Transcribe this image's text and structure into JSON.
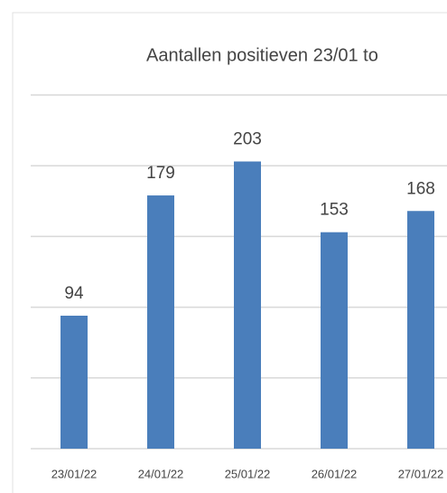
{
  "chart_data": {
    "type": "bar",
    "title": "Aantallen positieven 23/01 to",
    "categories": [
      "23/01/22",
      "24/01/22",
      "25/01/22",
      "26/01/22",
      "27/01/22"
    ],
    "values": [
      94,
      179,
      203,
      153,
      168
    ],
    "color": "#4a7ebb",
    "ylim": [
      0,
      250
    ],
    "yticks": [
      0,
      50,
      100,
      150,
      200,
      250
    ],
    "grid": true
  }
}
